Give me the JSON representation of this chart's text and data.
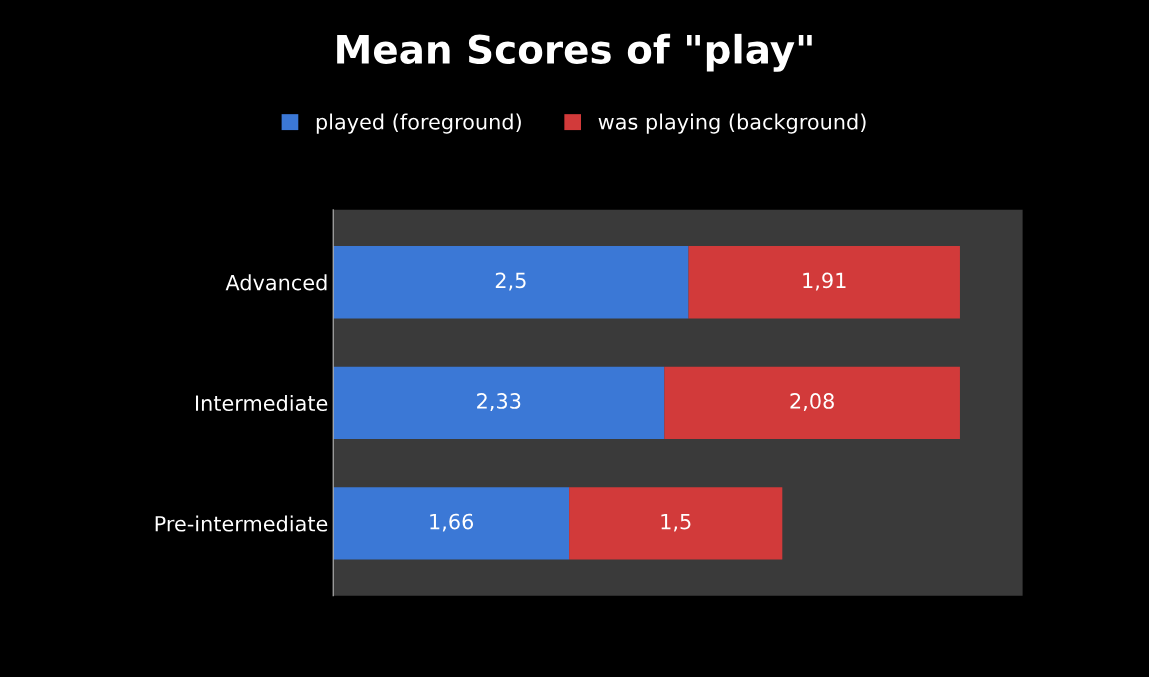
{
  "chart_data": {
    "type": "bar",
    "orientation": "horizontal",
    "stacked": true,
    "title": "Mean Scores of \"play\"",
    "categories": [
      "Advanced",
      "Intermediate",
      "Pre-intermediate"
    ],
    "series": [
      {
        "name": "played (foreground)",
        "color": "#3b78d6",
        "values": [
          2.5,
          2.33,
          1.66
        ],
        "value_labels": [
          "2,5",
          "2,33",
          "1,66"
        ]
      },
      {
        "name": "was playing (background)",
        "color": "#d23a3a",
        "values": [
          1.91,
          2.08,
          1.5
        ],
        "value_labels": [
          "1,91",
          "2,08",
          "1,5"
        ]
      }
    ],
    "legend": "top",
    "grid": false
  }
}
